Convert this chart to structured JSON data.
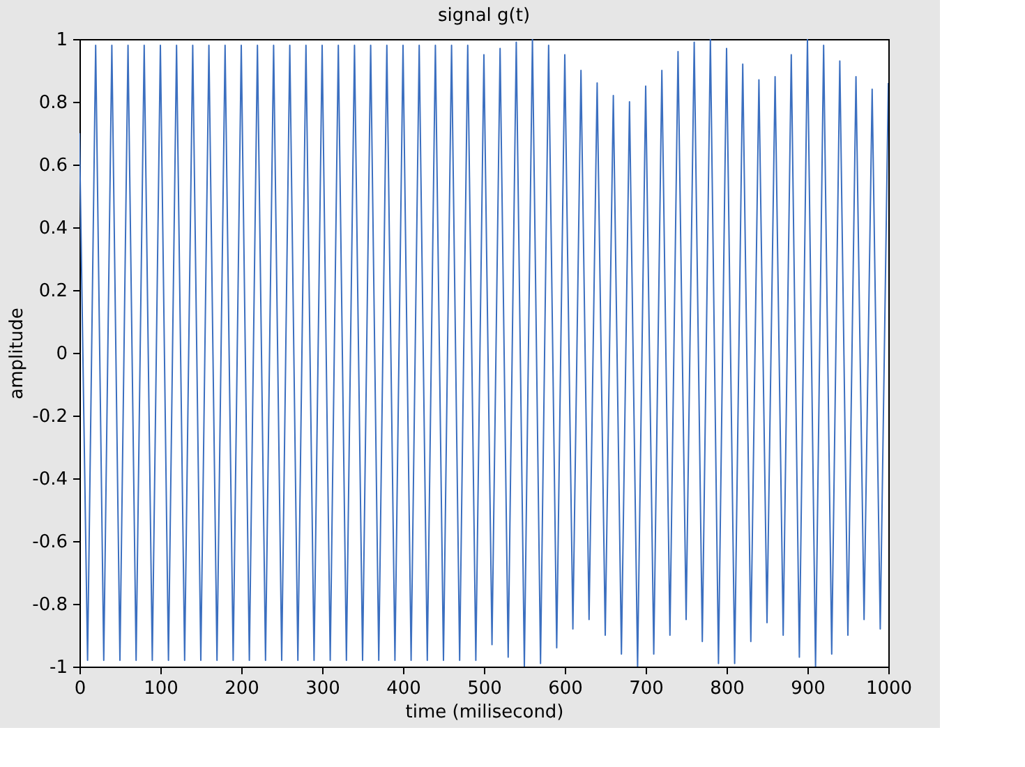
{
  "chart_data": {
    "type": "line",
    "title": "signal g(t)",
    "xlabel": "time (milisecond)",
    "ylabel": "amplitude",
    "x": [
      0,
      10,
      20,
      30,
      40,
      50,
      60,
      70,
      80,
      90,
      100,
      110,
      120,
      130,
      140,
      150,
      160,
      170,
      180,
      190,
      200,
      210,
      220,
      230,
      240,
      250,
      260,
      270,
      280,
      290,
      300,
      310,
      320,
      330,
      340,
      350,
      360,
      370,
      380,
      390,
      400,
      410,
      420,
      430,
      440,
      450,
      460,
      470,
      480,
      490,
      500,
      510,
      520,
      530,
      540,
      550,
      560,
      570,
      580,
      590,
      600,
      610,
      620,
      630,
      640,
      650,
      660,
      670,
      680,
      690,
      700,
      710,
      720,
      730,
      740,
      750,
      760,
      770,
      780,
      790,
      800,
      810,
      820,
      830,
      840,
      850,
      860,
      870,
      880,
      890,
      900,
      910,
      920,
      930,
      940,
      950,
      960,
      970,
      980,
      990,
      1000
    ],
    "series": [
      {
        "color": "#3b6fc0",
        "values": [
          0.7,
          -0.98,
          0.98,
          -0.98,
          0.98,
          -0.98,
          0.98,
          -0.98,
          0.98,
          -0.98,
          0.98,
          -0.98,
          0.98,
          -0.98,
          0.98,
          -0.98,
          0.98,
          -0.98,
          0.98,
          -0.98,
          0.98,
          -0.98,
          0.98,
          -0.98,
          0.98,
          -0.98,
          0.98,
          -0.98,
          0.98,
          -0.98,
          0.98,
          -0.98,
          0.98,
          -0.98,
          0.98,
          -0.98,
          0.98,
          -0.98,
          0.98,
          -0.98,
          0.98,
          -0.98,
          0.98,
          -0.98,
          0.98,
          -0.98,
          0.98,
          -0.98,
          0.98,
          -0.98,
          0.95,
          -0.93,
          0.97,
          -0.97,
          0.99,
          -1,
          1,
          -0.99,
          0.98,
          -0.94,
          0.95,
          -0.88,
          0.9,
          -0.85,
          0.86,
          -0.9,
          0.82,
          -0.96,
          0.8,
          -1,
          0.85,
          -0.96,
          0.9,
          -0.9,
          0.96,
          -0.85,
          0.99,
          -0.92,
          1,
          -0.99,
          0.97,
          -0.99,
          0.92,
          -0.92,
          0.87,
          -0.86,
          0.88,
          -0.9,
          0.95,
          -0.97,
          1,
          -1,
          0.98,
          -0.96,
          0.93,
          -0.9,
          0.88,
          -0.85,
          0.84,
          -0.88,
          0.86
        ]
      }
    ],
    "xlim": [
      0,
      1000
    ],
    "xticks": [
      0,
      100,
      200,
      300,
      400,
      500,
      600,
      700,
      800,
      900,
      1000
    ],
    "ylim": [
      -1,
      1
    ],
    "yticks": [
      -1,
      -0.8,
      -0.6,
      -0.4,
      -0.2,
      0,
      0.2,
      0.4,
      0.6,
      0.8,
      1
    ],
    "grid": false,
    "marker": "none",
    "line_style": "solid"
  }
}
